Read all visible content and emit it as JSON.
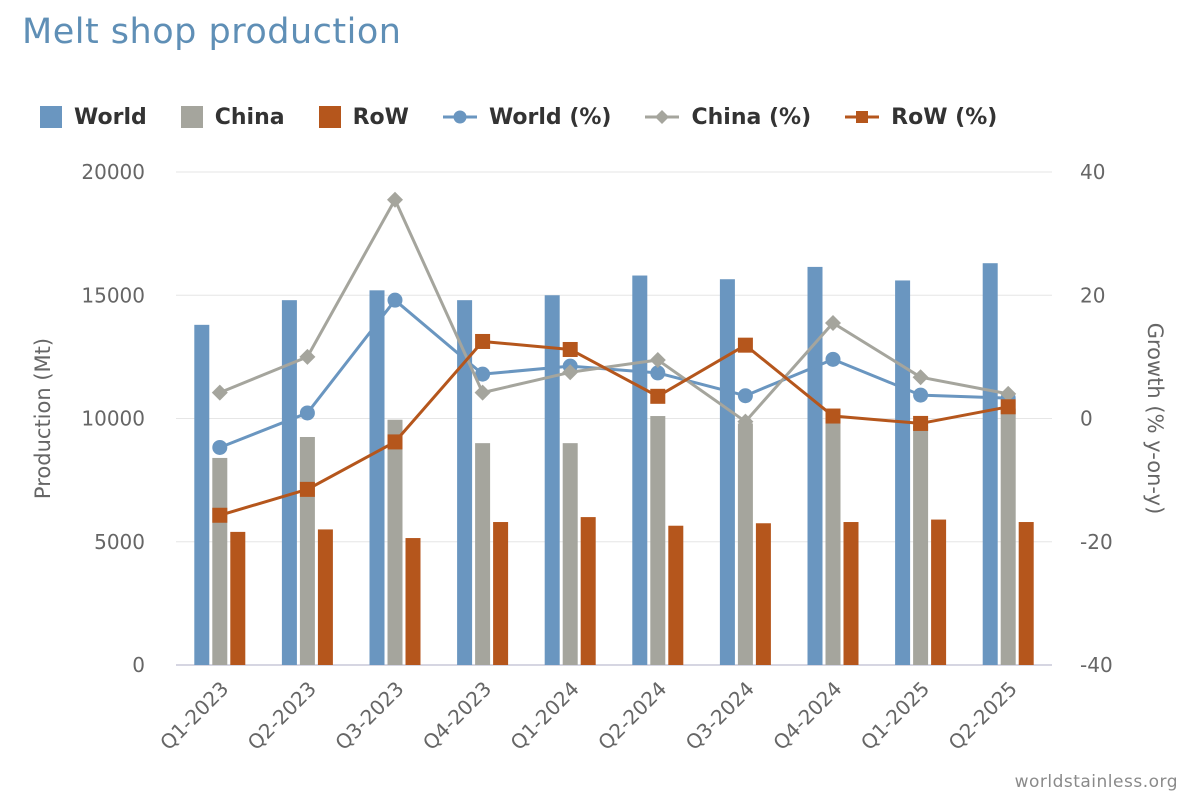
{
  "title": "Melt shop production",
  "watermark": "worldstainless.org",
  "legend": [
    {
      "label": "World",
      "kind": "bar",
      "color": "#6a96c0",
      "icon": "square-swatch-icon"
    },
    {
      "label": "China",
      "kind": "bar",
      "color": "#a5a59d",
      "icon": "square-swatch-icon"
    },
    {
      "label": "RoW",
      "kind": "bar",
      "color": "#b5561c",
      "icon": "square-swatch-icon"
    },
    {
      "label": "World (%)",
      "kind": "line",
      "marker": "circle",
      "color": "#6a96c0",
      "icon": "circle-line-icon"
    },
    {
      "label": "China (%)",
      "kind": "line",
      "marker": "diamond",
      "color": "#a5a59d",
      "icon": "diamond-line-icon"
    },
    {
      "label": "RoW (%)",
      "kind": "line",
      "marker": "square",
      "color": "#b5561c",
      "icon": "square-line-icon"
    }
  ],
  "chart_data": {
    "type": "bar",
    "title": "Melt shop production",
    "categories": [
      "Q1-2023",
      "Q2-2023",
      "Q3-2023",
      "Q4-2023",
      "Q1-2024",
      "Q2-2024",
      "Q3-2024",
      "Q4-2024",
      "Q1-2025",
      "Q2-2025"
    ],
    "ylabel": "Production (Mt)",
    "y2label": "Growth (% y-on-y)",
    "ylim": [
      0,
      20000
    ],
    "yticks": [
      0,
      5000,
      10000,
      15000,
      20000
    ],
    "y2lim": [
      -40,
      40
    ],
    "y2ticks": [
      -40,
      -20,
      0,
      20,
      40
    ],
    "grid": true,
    "legend_position": "top",
    "series": [
      {
        "name": "World",
        "type": "bar",
        "axis": "left",
        "color": "#6a96c0",
        "values": [
          13800,
          14800,
          15200,
          14800,
          15000,
          15800,
          15650,
          16150,
          15600,
          16300
        ]
      },
      {
        "name": "China",
        "type": "bar",
        "axis": "left",
        "color": "#a5a59d",
        "values": [
          8400,
          9250,
          9950,
          9000,
          9000,
          10100,
          9800,
          10000,
          9700,
          10400
        ]
      },
      {
        "name": "RoW",
        "type": "bar",
        "axis": "left",
        "color": "#b5561c",
        "values": [
          5400,
          5500,
          5150,
          5800,
          6000,
          5650,
          5750,
          5800,
          5900,
          5800
        ]
      },
      {
        "name": "World (%)",
        "type": "line",
        "axis": "right",
        "marker": "circle",
        "color": "#6a96c0",
        "values": [
          -4.7,
          0.9,
          19.2,
          7.2,
          8.5,
          7.4,
          3.7,
          9.6,
          3.8,
          3.3
        ]
      },
      {
        "name": "China (%)",
        "type": "line",
        "axis": "right",
        "marker": "diamond",
        "color": "#a5a59d",
        "values": [
          4.2,
          10.0,
          35.5,
          4.2,
          7.5,
          9.5,
          -0.5,
          15.5,
          6.7,
          4.0
        ]
      },
      {
        "name": "RoW (%)",
        "type": "line",
        "axis": "right",
        "marker": "square",
        "color": "#b5561c",
        "values": [
          -15.7,
          -11.5,
          -3.8,
          12.5,
          11.2,
          3.6,
          11.9,
          0.4,
          -0.8,
          1.9
        ]
      }
    ]
  }
}
